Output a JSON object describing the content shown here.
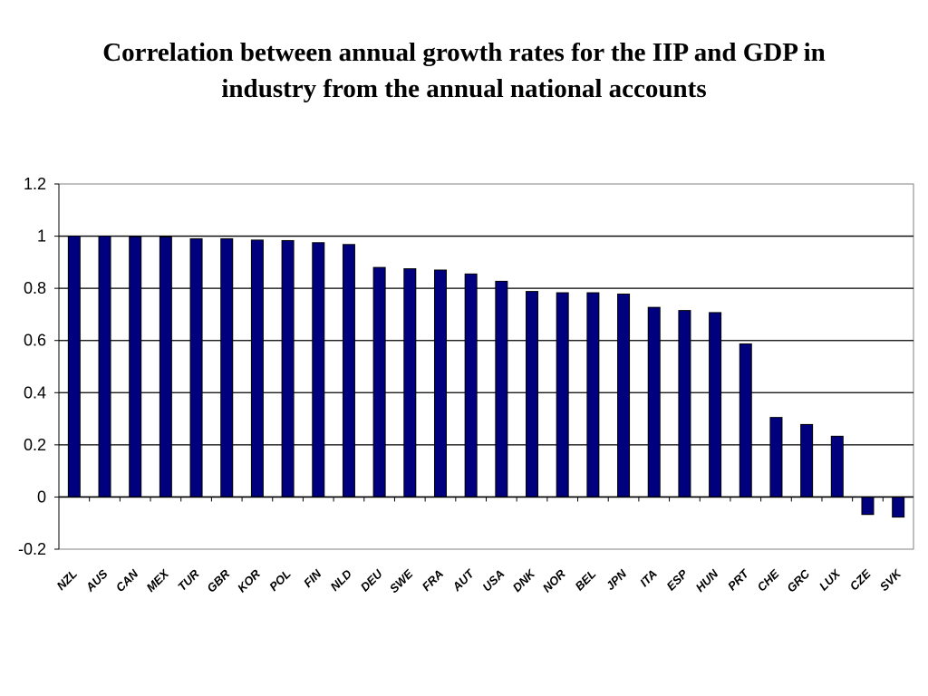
{
  "title_lines": [
    "Correlation between annual growth rates for the IIP and GDP in",
    "industry from the annual national accounts"
  ],
  "chart_data": {
    "type": "bar",
    "title": "Correlation between annual growth rates for the IIP and GDP in industry from the annual national accounts",
    "xlabel": "",
    "ylabel": "",
    "ylim": [
      -0.2,
      1.2
    ],
    "yticks": [
      1.2,
      1,
      0.8,
      0.6,
      0.4,
      0.2,
      0,
      -0.2
    ],
    "ytick_labels": [
      "1.2",
      "1",
      "0.8",
      "0.6",
      "0.4",
      "0.2",
      "0",
      "-0.2"
    ],
    "grid": true,
    "legend": "none",
    "bar_color": "#00007f",
    "categories": [
      "NZL",
      "AUS",
      "CAN",
      "MEX",
      "TUR",
      "GBR",
      "KOR",
      "POL",
      "FIN",
      "NLD",
      "DEU",
      "SWE",
      "FRA",
      "AUT",
      "USA",
      "DNK",
      "NOR",
      "BEL",
      "JPN",
      "ITA",
      "ESP",
      "HUN",
      "PRT",
      "CHE",
      "GRC",
      "LUX",
      "CZE",
      "SVK"
    ],
    "values": [
      1.0,
      1.0,
      0.998,
      0.997,
      0.99,
      0.99,
      0.985,
      0.983,
      0.975,
      0.968,
      0.88,
      0.875,
      0.87,
      0.855,
      0.827,
      0.788,
      0.783,
      0.783,
      0.778,
      0.727,
      0.715,
      0.707,
      0.587,
      0.305,
      0.278,
      0.233,
      -0.067,
      -0.077
    ]
  }
}
